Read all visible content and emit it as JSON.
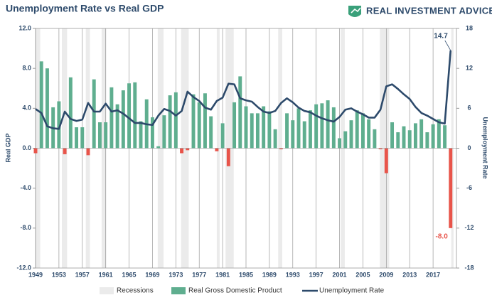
{
  "chart_data": {
    "type": "bar-line",
    "title": "Unemployment Rate vs Real GDP",
    "brand": "REAL INVESTMENT ADVICE",
    "y_label": "Real GDP",
    "y2_label": "Unemployment Rate",
    "x": [
      1949,
      1950,
      1951,
      1952,
      1953,
      1954,
      1955,
      1956,
      1957,
      1958,
      1959,
      1960,
      1961,
      1962,
      1963,
      1964,
      1965,
      1966,
      1967,
      1968,
      1969,
      1970,
      1971,
      1972,
      1973,
      1974,
      1975,
      1976,
      1977,
      1978,
      1979,
      1980,
      1981,
      1982,
      1983,
      1984,
      1985,
      1986,
      1987,
      1988,
      1989,
      1990,
      1991,
      1992,
      1993,
      1994,
      1995,
      1996,
      1997,
      1998,
      1999,
      2000,
      2001,
      2002,
      2003,
      2004,
      2005,
      2006,
      2007,
      2008,
      2009,
      2010,
      2011,
      2012,
      2013,
      2014,
      2015,
      2016,
      2017,
      2018,
      2019,
      2020
    ],
    "series": [
      {
        "name": "Real Gross Domestic Product",
        "color": "#5fae8f",
        "negative_color": "#e8544a",
        "values": [
          -0.5,
          8.7,
          8.0,
          4.1,
          4.7,
          -0.6,
          7.1,
          2.1,
          2.1,
          -0.7,
          6.9,
          2.6,
          2.6,
          6.1,
          4.4,
          5.8,
          6.5,
          6.6,
          2.7,
          4.9,
          3.1,
          0.2,
          3.3,
          5.3,
          5.6,
          -0.5,
          -0.2,
          5.4,
          4.6,
          5.5,
          3.2,
          -0.3,
          2.5,
          -1.8,
          4.6,
          7.2,
          4.2,
          3.5,
          3.5,
          4.2,
          3.7,
          1.9,
          -0.1,
          3.5,
          2.8,
          4.0,
          2.7,
          3.8,
          4.4,
          4.5,
          4.8,
          4.1,
          1.0,
          1.7,
          2.8,
          3.8,
          3.5,
          2.9,
          1.9,
          -0.1,
          -2.5,
          2.6,
          1.6,
          2.2,
          1.8,
          2.5,
          2.9,
          1.6,
          2.4,
          2.9,
          2.3,
          -8.0
        ]
      },
      {
        "name": "Unemployment Rate",
        "color": "#2d4a6b",
        "axis": "y2",
        "values": [
          5.9,
          5.3,
          3.3,
          3.0,
          2.9,
          5.5,
          4.4,
          4.1,
          4.3,
          6.8,
          5.5,
          5.5,
          6.7,
          5.5,
          5.7,
          5.2,
          4.5,
          3.8,
          3.8,
          3.6,
          3.5,
          4.9,
          5.9,
          5.6,
          4.9,
          5.6,
          8.5,
          7.7,
          7.1,
          6.1,
          5.8,
          7.1,
          7.6,
          9.7,
          9.6,
          7.5,
          7.2,
          7.0,
          6.2,
          5.5,
          5.3,
          5.6,
          6.8,
          7.5,
          6.9,
          6.1,
          5.6,
          5.4,
          4.9,
          4.5,
          4.2,
          4.0,
          4.7,
          5.8,
          6.0,
          5.5,
          5.1,
          4.6,
          4.6,
          5.8,
          9.3,
          9.6,
          8.9,
          8.1,
          7.4,
          6.2,
          5.3,
          4.9,
          4.4,
          3.9,
          3.7,
          14.7
        ]
      }
    ],
    "recessions": {
      "name": "Recessions",
      "color": "#ebebeb",
      "ranges": [
        [
          1948.9,
          1949.8
        ],
        [
          1953.5,
          1954.4
        ],
        [
          1957.6,
          1958.3
        ],
        [
          1960.3,
          1961.1
        ],
        [
          1969.9,
          1970.9
        ],
        [
          1973.9,
          1975.2
        ],
        [
          1980.0,
          1980.5
        ],
        [
          1981.5,
          1982.9
        ],
        [
          1990.5,
          1991.2
        ],
        [
          2001.2,
          2001.9
        ],
        [
          2007.9,
          2009.5
        ],
        [
          2020.1,
          2020.5
        ]
      ]
    },
    "annotations": [
      "14.7",
      "-8.0"
    ],
    "xlim": [
      1949,
      2021
    ],
    "xticks": [
      1949,
      1953,
      1957,
      1961,
      1965,
      1969,
      1973,
      1977,
      1981,
      1985,
      1989,
      1993,
      1997,
      2001,
      2005,
      2009,
      2013,
      2017
    ],
    "ylim": [
      -12,
      12
    ],
    "yticks": [
      {
        "value": -12,
        "label": "-12.0"
      },
      {
        "value": -8,
        "label": "-8.0"
      },
      {
        "value": -4,
        "label": "-4.0"
      },
      {
        "value": 0,
        "label": "0.0"
      },
      {
        "value": 4,
        "label": "4.0"
      },
      {
        "value": 8,
        "label": "8.0"
      },
      {
        "value": 12,
        "label": "12.0"
      }
    ],
    "y2lim": [
      -18,
      18
    ],
    "y2ticks": [
      -18,
      -12,
      -6,
      0,
      6,
      12,
      18
    ],
    "grid": "x"
  }
}
